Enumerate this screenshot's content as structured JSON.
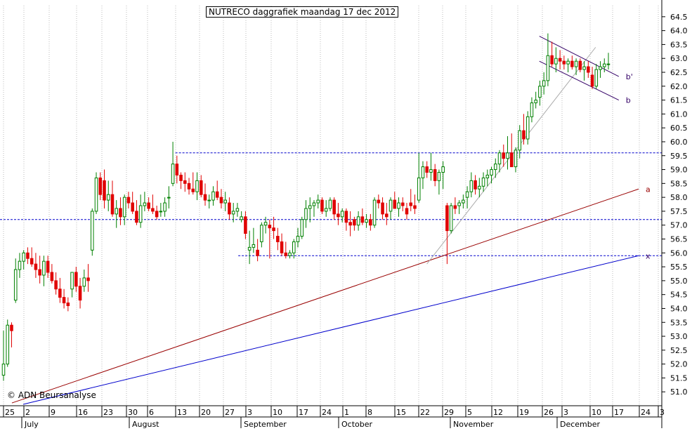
{
  "chart_data": {
    "type": "candlestick",
    "title": "NUTRECO daggrafiek maandag 17 dec 2012",
    "copyright": "© ADN Beursanalyse",
    "y_ticks": [
      "64.5",
      "64.0",
      "63.5",
      "63.0",
      "62.5",
      "62.0",
      "61.5",
      "61.0",
      "60.5",
      "60.0",
      "59.5",
      "59.0",
      "58.5",
      "58.0",
      "57.5",
      "57.0",
      "56.5",
      "56.0",
      "55.5",
      "55.0",
      "54.5",
      "54.0",
      "53.5",
      "53.0",
      "52.5",
      "52.0",
      "51.5",
      "51.0"
    ],
    "ylim": [
      50.5,
      64.9
    ],
    "day_ticks": [
      "25",
      "2",
      "9",
      "16",
      "23",
      "30",
      "6",
      "13",
      "20",
      "27",
      "3",
      "10",
      "17",
      "24",
      "1",
      "8",
      "15",
      "22",
      "29",
      "5",
      "12",
      "19",
      "26",
      "3",
      "10",
      "17",
      "24",
      "3"
    ],
    "months": [
      "July",
      "August",
      "September",
      "October",
      "November",
      "December"
    ],
    "grid": "vertical dotted gridlines at weekly ticks",
    "up_color": "#008000",
    "down_color": "#e00000",
    "candles": [
      [
        51.6,
        53.2,
        51.4,
        52.0
      ],
      [
        52.0,
        53.6,
        51.9,
        53.4
      ],
      [
        53.4,
        53.5,
        52.6,
        53.2
      ],
      [
        54.3,
        55.8,
        54.2,
        55.4
      ],
      [
        55.4,
        56.0,
        55.1,
        55.7
      ],
      [
        55.7,
        56.1,
        55.4,
        56.0
      ],
      [
        56.0,
        56.2,
        55.6,
        55.8
      ],
      [
        55.8,
        56.2,
        55.5,
        55.6
      ],
      [
        55.6,
        56.0,
        55.1,
        55.4
      ],
      [
        55.4,
        55.9,
        54.9,
        55.2
      ],
      [
        55.2,
        55.9,
        54.8,
        55.7
      ],
      [
        55.7,
        55.9,
        55.1,
        55.3
      ],
      [
        55.3,
        55.6,
        54.9,
        55.0
      ],
      [
        55.0,
        55.3,
        54.5,
        54.7
      ],
      [
        54.7,
        55.1,
        54.2,
        54.4
      ],
      [
        54.4,
        54.7,
        54.0,
        54.2
      ],
      [
        54.2,
        54.4,
        53.9,
        54.1
      ],
      [
        54.7,
        55.3,
        54.4,
        55.3
      ],
      [
        55.3,
        55.5,
        54.6,
        54.8
      ],
      [
        54.8,
        55.1,
        54.0,
        54.3
      ],
      [
        54.8,
        55.4,
        54.6,
        55.1
      ],
      [
        55.1,
        55.6,
        54.6,
        55.0
      ],
      [
        56.1,
        57.6,
        55.9,
        57.5
      ],
      [
        57.5,
        58.9,
        57.4,
        58.7
      ],
      [
        58.7,
        58.9,
        57.9,
        58.1
      ],
      [
        58.6,
        59.0,
        57.6,
        57.9
      ],
      [
        57.9,
        58.6,
        57.5,
        58.1
      ],
      [
        58.1,
        58.6,
        57.3,
        57.4
      ],
      [
        57.4,
        57.9,
        56.9,
        57.6
      ],
      [
        57.6,
        58.0,
        57.0,
        57.3
      ],
      [
        57.3,
        58.1,
        57.0,
        58.0
      ],
      [
        58.0,
        58.2,
        57.6,
        57.8
      ],
      [
        57.8,
        58.2,
        57.4,
        57.5
      ],
      [
        57.5,
        57.9,
        57.0,
        57.1
      ],
      [
        57.1,
        58.1,
        56.9,
        57.7
      ],
      [
        57.7,
        58.2,
        57.5,
        57.8
      ],
      [
        57.8,
        58.0,
        57.5,
        57.6
      ],
      [
        57.6,
        58.1,
        57.4,
        57.5
      ],
      [
        57.5,
        57.7,
        57.2,
        57.3
      ],
      [
        57.5,
        57.8,
        57.3,
        57.5
      ],
      [
        57.5,
        58.0,
        57.3,
        57.8
      ],
      [
        58.0,
        58.4,
        57.6,
        58.0
      ],
      [
        58.5,
        60.0,
        58.4,
        59.2
      ],
      [
        59.2,
        59.5,
        58.5,
        58.8
      ],
      [
        58.8,
        58.9,
        58.3,
        58.6
      ],
      [
        58.6,
        58.9,
        58.2,
        58.5
      ],
      [
        58.5,
        58.7,
        58.1,
        58.3
      ],
      [
        58.3,
        58.9,
        58.1,
        58.2
      ],
      [
        58.2,
        58.9,
        57.9,
        58.6
      ],
      [
        58.6,
        58.8,
        58.0,
        58.1
      ],
      [
        58.1,
        58.5,
        57.7,
        57.9
      ],
      [
        57.9,
        58.1,
        57.6,
        57.9
      ],
      [
        57.9,
        58.4,
        57.7,
        58.2
      ],
      [
        58.2,
        58.6,
        57.9,
        58.0
      ],
      [
        58.0,
        58.3,
        57.6,
        57.8
      ],
      [
        57.8,
        58.2,
        57.5,
        57.9
      ],
      [
        57.8,
        58.0,
        57.2,
        57.4
      ],
      [
        57.4,
        57.8,
        57.1,
        57.5
      ],
      [
        57.5,
        57.8,
        57.3,
        57.6
      ],
      [
        57.2,
        57.5,
        57.1,
        57.3
      ],
      [
        57.3,
        57.5,
        56.5,
        56.7
      ],
      [
        56.1,
        56.8,
        55.6,
        56.2
      ],
      [
        56.2,
        56.9,
        56.0,
        56.3
      ],
      [
        56.1,
        56.5,
        55.7,
        55.9
      ],
      [
        56.4,
        57.1,
        56.2,
        57.0
      ],
      [
        57.0,
        57.3,
        56.7,
        57.1
      ],
      [
        57.0,
        57.2,
        55.8,
        56.9
      ],
      [
        56.9,
        57.3,
        56.5,
        56.8
      ],
      [
        56.6,
        56.9,
        56.1,
        56.4
      ],
      [
        56.4,
        56.7,
        55.9,
        56.0
      ],
      [
        56.0,
        56.4,
        55.8,
        55.9
      ],
      [
        55.9,
        56.1,
        55.8,
        56.0
      ],
      [
        56.0,
        56.5,
        55.8,
        56.4
      ],
      [
        56.4,
        56.9,
        56.2,
        56.6
      ],
      [
        56.6,
        57.3,
        56.5,
        57.2
      ],
      [
        57.2,
        57.9,
        56.9,
        57.6
      ],
      [
        57.6,
        58.0,
        57.1,
        57.7
      ],
      [
        57.7,
        57.9,
        57.3,
        57.8
      ],
      [
        57.8,
        58.1,
        57.6,
        57.9
      ],
      [
        57.9,
        58.0,
        57.4,
        57.5
      ],
      [
        57.5,
        57.9,
        57.3,
        57.6
      ],
      [
        57.6,
        58.0,
        57.5,
        57.9
      ],
      [
        57.9,
        58.0,
        57.2,
        57.4
      ],
      [
        57.4,
        57.8,
        57.0,
        57.3
      ],
      [
        57.3,
        57.6,
        57.1,
        57.5
      ],
      [
        57.5,
        57.6,
        56.8,
        57.1
      ],
      [
        57.1,
        57.5,
        56.6,
        57.0
      ],
      [
        57.2,
        57.3,
        56.8,
        57.0
      ],
      [
        57.0,
        57.5,
        56.8,
        57.3
      ],
      [
        57.3,
        57.6,
        57.0,
        57.1
      ],
      [
        57.1,
        57.4,
        56.9,
        57.2
      ],
      [
        57.2,
        57.4,
        56.8,
        57.0
      ],
      [
        57.0,
        58.0,
        56.9,
        57.9
      ],
      [
        57.9,
        58.1,
        57.6,
        57.8
      ],
      [
        57.8,
        58.0,
        57.2,
        57.4
      ],
      [
        57.4,
        57.8,
        57.0,
        57.3
      ],
      [
        57.5,
        58.0,
        57.2,
        57.9
      ],
      [
        57.9,
        58.2,
        57.6,
        57.6
      ],
      [
        57.6,
        58.0,
        57.3,
        57.8
      ],
      [
        57.8,
        58.0,
        57.5,
        57.7
      ],
      [
        57.6,
        57.8,
        57.2,
        57.4
      ],
      [
        57.8,
        58.3,
        57.5,
        57.7
      ],
      [
        57.7,
        58.1,
        57.4,
        57.6
      ],
      [
        57.9,
        59.6,
        57.8,
        58.7
      ],
      [
        58.7,
        59.3,
        58.3,
        59.1
      ],
      [
        59.1,
        59.3,
        58.7,
        58.9
      ],
      [
        58.9,
        59.6,
        58.6,
        59.0
      ],
      [
        59.0,
        59.2,
        58.4,
        58.6
      ],
      [
        58.6,
        59.0,
        58.1,
        58.9
      ],
      [
        58.9,
        59.3,
        58.3,
        59.1
      ],
      [
        57.7,
        57.8,
        55.6,
        56.8
      ],
      [
        56.8,
        57.8,
        56.7,
        57.7
      ],
      [
        57.7,
        58.0,
        57.4,
        57.6
      ],
      [
        57.7,
        57.9,
        57.4,
        57.8
      ],
      [
        57.8,
        58.1,
        57.6,
        57.9
      ],
      [
        58.0,
        58.4,
        57.6,
        58.2
      ],
      [
        58.2,
        58.9,
        58.0,
        58.6
      ],
      [
        58.6,
        58.8,
        58.1,
        58.3
      ],
      [
        58.3,
        58.7,
        58.0,
        58.4
      ],
      [
        58.4,
        58.9,
        58.2,
        58.7
      ],
      [
        58.7,
        59.0,
        58.4,
        58.8
      ],
      [
        58.8,
        59.1,
        58.5,
        59.0
      ],
      [
        59.0,
        59.4,
        58.7,
        59.2
      ],
      [
        59.2,
        59.7,
        58.9,
        59.6
      ],
      [
        59.6,
        59.9,
        59.1,
        59.4
      ],
      [
        59.4,
        60.2,
        59.0,
        59.6
      ],
      [
        59.6,
        60.3,
        59.1,
        59.1
      ],
      [
        59.1,
        59.8,
        58.9,
        59.7
      ],
      [
        59.7,
        60.6,
        59.4,
        60.4
      ],
      [
        60.4,
        61.0,
        59.9,
        60.1
      ],
      [
        60.1,
        61.1,
        59.9,
        60.9
      ],
      [
        60.9,
        61.6,
        60.7,
        61.4
      ],
      [
        61.4,
        61.8,
        61.2,
        61.5
      ],
      [
        61.6,
        62.2,
        61.3,
        62.0
      ],
      [
        62.0,
        62.5,
        61.7,
        62.2
      ],
      [
        62.2,
        63.9,
        62.0,
        63.1
      ],
      [
        63.1,
        63.6,
        62.7,
        62.8
      ],
      [
        62.8,
        63.4,
        62.5,
        63.0
      ],
      [
        63.0,
        63.3,
        62.6,
        62.9
      ],
      [
        62.9,
        63.1,
        62.6,
        62.8
      ],
      [
        62.8,
        63.0,
        62.5,
        62.9
      ],
      [
        62.9,
        63.1,
        62.6,
        62.7
      ],
      [
        62.7,
        63.0,
        62.4,
        62.9
      ],
      [
        62.9,
        63.0,
        62.5,
        62.6
      ],
      [
        62.6,
        62.9,
        62.2,
        62.7
      ],
      [
        62.7,
        62.9,
        62.3,
        62.5
      ],
      [
        62.4,
        62.7,
        61.9,
        62.0
      ],
      [
        62.0,
        62.8,
        61.9,
        62.6
      ],
      [
        62.6,
        62.9,
        62.3,
        62.7
      ],
      [
        62.7,
        63.0,
        62.5,
        62.8
      ],
      [
        62.8,
        63.2,
        62.6,
        62.8
      ]
    ],
    "h_lines": [
      {
        "y": 59.6,
        "x_from": 0.265,
        "x_to": 1.0,
        "color": "#0000cc"
      },
      {
        "y": 57.2,
        "x_from": 0.0,
        "x_to": 1.0,
        "color": "#0000cc"
      },
      {
        "y": 55.9,
        "x_from": 0.36,
        "x_to": 1.0,
        "color": "#0000cc"
      }
    ],
    "trend_lines": [
      {
        "label": "a",
        "color": "#990000",
        "x0": 0.018,
        "y0": 50.6,
        "x1": 0.965,
        "y1": 58.3
      },
      {
        "label": "x",
        "color": "#0000cc",
        "x0": 0.035,
        "y0": 50.55,
        "x1": 0.965,
        "y1": 55.9
      },
      {
        "label": "",
        "color": "#aaaaaa",
        "x0": 0.645,
        "y0": 55.6,
        "x1": 0.9,
        "y1": 63.4
      },
      {
        "label": "b'",
        "color": "#330066",
        "x0": 0.815,
        "y0": 63.8,
        "x1": 0.935,
        "y1": 62.35
      },
      {
        "label": "b",
        "color": "#330066",
        "x0": 0.815,
        "y0": 62.9,
        "x1": 0.935,
        "y1": 61.5
      }
    ]
  }
}
